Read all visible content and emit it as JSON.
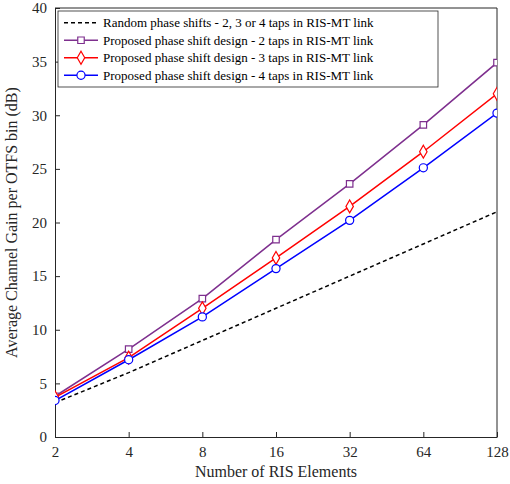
{
  "chart_data": {
    "type": "line",
    "x_label": "Number of RIS Elements",
    "y_label": "Average Channel Gain per OTFS bin (dB)",
    "x": [
      2,
      4,
      8,
      16,
      32,
      64,
      128
    ],
    "xlim": [
      2,
      128
    ],
    "xticks": [
      2,
      4,
      8,
      16,
      32,
      64,
      128
    ],
    "ylim": [
      0,
      40
    ],
    "yticks": [
      0,
      5,
      10,
      15,
      20,
      25,
      30,
      35,
      40
    ],
    "log": "x",
    "grid": false,
    "legend": "upper left",
    "series": [
      {
        "name": "Random phase shifts - 2, 3 or 4 taps in RIS-MT link",
        "color": "#000000",
        "line_style": "dashed",
        "values": [
          3.2,
          6.0,
          9.0,
          12.0,
          15.0,
          18.0,
          21.0
        ]
      },
      {
        "name": "Proposed phase shift design - 2 taps in RIS-MT link",
        "color": "#7e2f8e",
        "line_style": "solid",
        "marker": "square",
        "values": [
          3.8,
          8.2,
          12.9,
          18.4,
          23.6,
          29.1,
          34.9
        ]
      },
      {
        "name": "Proposed phase shift design - 3 taps in RIS-MT link",
        "color": "#ff0000",
        "line_style": "solid",
        "marker": "diamond",
        "values": [
          3.7,
          7.4,
          12.0,
          16.7,
          21.5,
          26.6,
          32.0
        ]
      },
      {
        "name": "Proposed phase shift design - 4 taps in RIS-MT link",
        "color": "#0000ff",
        "line_style": "solid",
        "marker": "circle",
        "values": [
          3.4,
          7.2,
          11.2,
          15.7,
          20.2,
          25.1,
          30.2
        ]
      }
    ]
  }
}
